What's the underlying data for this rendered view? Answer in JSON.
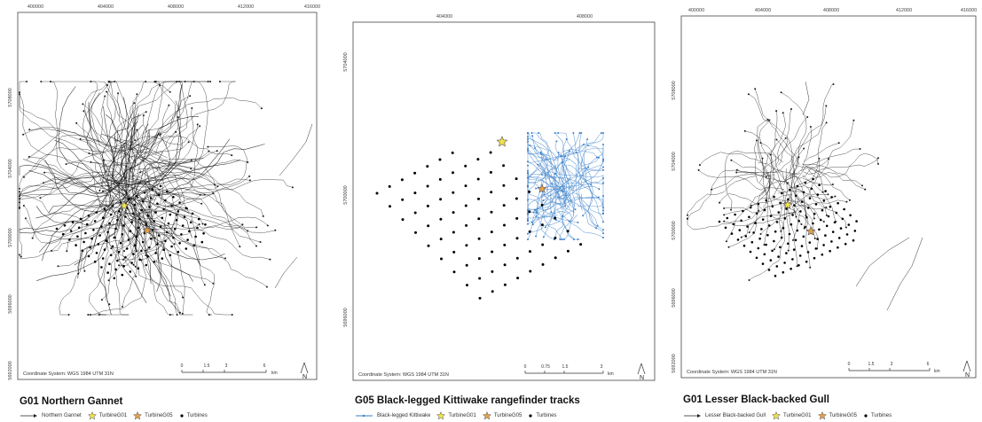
{
  "panels": [
    {
      "id": "gannet",
      "title": "G01 Northern Gannet",
      "top_ticks": [
        "400000",
        "404000",
        "408000",
        "412000",
        "416000"
      ],
      "left_ticks": [
        "5708000",
        "5704000",
        "5700000",
        "5696000",
        "5692000"
      ],
      "coordinate_system": "Coordinate System: WGS 1984 UTM 31N",
      "scale_labels": [
        "0",
        "1.5",
        "3",
        "6"
      ],
      "scale_unit": "km",
      "north": "N",
      "legend": {
        "track_label": "Northern Gannet",
        "track_color": "#222222",
        "turbine_g01": "TurbineG01",
        "turbine_g05": "TurbineG05",
        "turbines": "Turbines"
      }
    },
    {
      "id": "kittiwake",
      "title": "G05 Black-legged Kittiwake rangefinder tracks",
      "top_ticks": [
        "404000",
        "408000"
      ],
      "left_ticks": [
        "5704000",
        "5700000",
        "5696000"
      ],
      "coordinate_system": "Coordinate System: WGS 1984 UTM 31N",
      "scale_labels": [
        "0",
        "0.75",
        "1.5",
        "3"
      ],
      "scale_unit": "km",
      "north": "N",
      "legend": {
        "track_label": "Black-legged Kittiwake",
        "track_color": "#3a7fc9",
        "turbine_g01": "TurbineG01",
        "turbine_g05": "TurbineG05",
        "turbines": "Turbines"
      }
    },
    {
      "id": "gull",
      "title": "G01 Lesser Black-backed Gull",
      "top_ticks": [
        "400000",
        "404000",
        "408000",
        "412000",
        "416000"
      ],
      "left_ticks": [
        "5708000",
        "5704000",
        "5700000",
        "5696000",
        "5692000"
      ],
      "coordinate_system": "Coordinate System: WGS 1984 UTM 31N",
      "scale_labels": [
        "0",
        "1.5",
        "3",
        "6"
      ],
      "scale_unit": "km",
      "north": "N",
      "legend": {
        "track_label": "Lesser Black-backed Gull",
        "track_color": "#222222",
        "turbine_g01": "TurbineG01",
        "turbine_g05": "TurbineG05",
        "turbines": "Turbines"
      }
    }
  ],
  "colors": {
    "turbine_g01": "#f3e24a",
    "turbine_g05": "#e3a04a",
    "turbines": "#000000"
  }
}
